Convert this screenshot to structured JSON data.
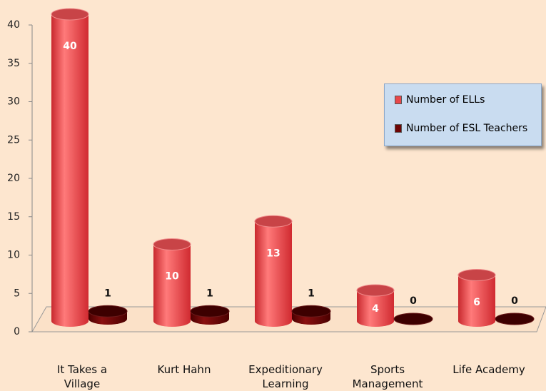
{
  "chart_data": {
    "type": "bar",
    "categories": [
      "It Takes a Village",
      "Kurt Hahn",
      "Expeditionary Learning",
      "Sports Management",
      "Life Academy"
    ],
    "series": [
      {
        "name": "Number of ELLs",
        "color": "#e8474a",
        "values": [
          40,
          10,
          13,
          4,
          6
        ]
      },
      {
        "name": "Number of ESL Teachers",
        "color": "#6e0404",
        "values": [
          1,
          1,
          1,
          0,
          0
        ]
      }
    ],
    "ylim": [
      0,
      40
    ],
    "yticks": [
      0,
      5,
      10,
      15,
      20,
      25,
      30,
      35,
      40
    ],
    "legend": "right"
  }
}
